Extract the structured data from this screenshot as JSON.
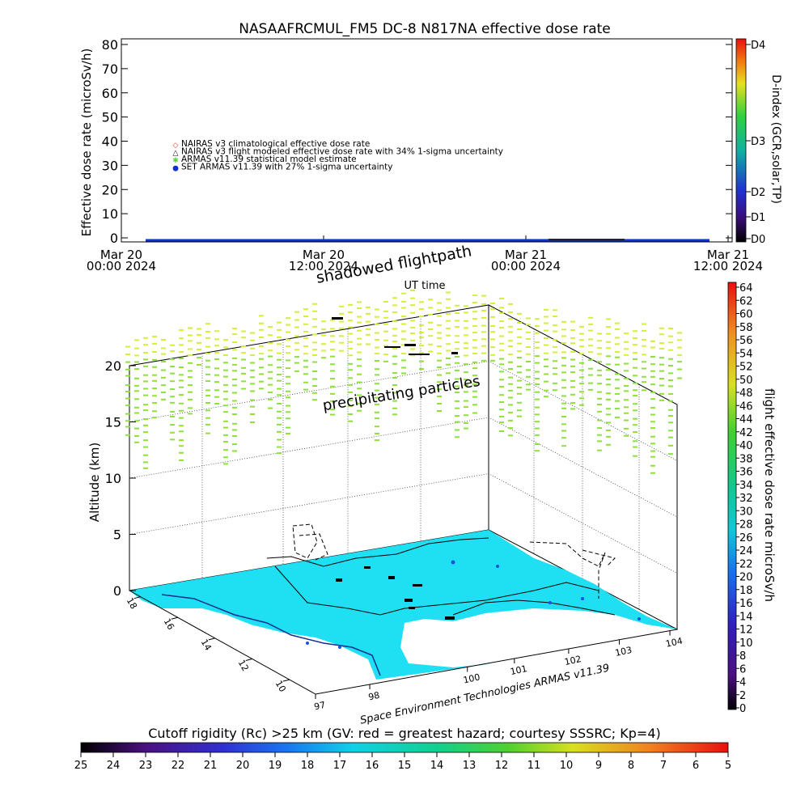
{
  "top_chart": {
    "title": "NASAAFRCMUL_FM5 DC-8   N817NA effective dose rate",
    "ylabel": "Effective dose rate (microSv/h)",
    "xlabel": "UT time",
    "yticks": [
      "0",
      "10",
      "20",
      "30",
      "40",
      "50",
      "60",
      "70",
      "80"
    ],
    "xticks": [
      {
        "l1": "Mar 20",
        "l2": "00:00 2024"
      },
      {
        "l1": "Mar 20",
        "l2": "12:00 2024"
      },
      {
        "l1": "Mar 21",
        "l2": "00:00 2024"
      },
      {
        "l1": "Mar 21",
        "l2": "12:00 2024"
      }
    ],
    "legend": [
      {
        "symbol": "◇",
        "color": "#e8311f",
        "text": "NAIRAS v3 climatological effective dose rate"
      },
      {
        "symbol": "△",
        "color": "#000000",
        "text": "NAIRAS v3 flight modeled effective dose rate with 34% 1-sigma uncertainty"
      },
      {
        "symbol": "✱",
        "color": "#5bd43c",
        "text": "ARMAS v11.39 statistical model estimate"
      },
      {
        "symbol": "●",
        "color": "#1030d0",
        "text": "SET ARMAS v11.39 with 27% 1-sigma uncertainty"
      }
    ],
    "dindex_label": "D-index (GCR,solar,TP)",
    "dindex_ticks": [
      "D4",
      "D3",
      "D2",
      "D1",
      "D0"
    ]
  },
  "chart_data": {
    "type": "line",
    "title": "NASAAFRCMUL_FM5 DC-8   N817NA effective dose rate",
    "xlabel": "UT time",
    "ylabel": "Effective dose rate (microSv/h)",
    "ylim": [
      0,
      80
    ],
    "x_range": [
      "Mar 20 00:00 2024",
      "Mar 21 12:00 2024"
    ],
    "series": [
      {
        "name": "SET ARMAS v11.39 with 27% 1-sigma uncertainty",
        "x": [
          "Mar 20 01:00",
          "Mar 21 11:00"
        ],
        "values": [
          0,
          0
        ]
      }
    ]
  },
  "labels": {
    "shadowed_flightpath": "shadowed flightpath",
    "precipitating_particles": "precipitating particles",
    "altitude": "Altitude (km)",
    "altitude_ticks": [
      "0",
      "5",
      "10",
      "15",
      "20"
    ],
    "lat_ticks": [
      "18",
      "16",
      "14",
      "12",
      "10"
    ],
    "lon_ticks": [
      "97",
      "98",
      "100",
      "101",
      "102",
      "103",
      "104"
    ],
    "credit": "Space Environment Technologies ARMAS v11.39"
  },
  "right_colorbar": {
    "label": "flight effective dose rate microSv/h",
    "ticks": [
      "64",
      "62",
      "60",
      "58",
      "56",
      "54",
      "52",
      "50",
      "48",
      "46",
      "44",
      "42",
      "40",
      "38",
      "36",
      "34",
      "32",
      "30",
      "28",
      "26",
      "24",
      "22",
      "20",
      "18",
      "16",
      "14",
      "12",
      "10",
      "8",
      "6",
      "4",
      "2",
      "0"
    ]
  },
  "bottom_colorbar": {
    "title": "Cutoff rigidity (Rc) >25 km (GV: red = greatest hazard; courtesy SSSRC; Kp=4)",
    "ticks": [
      "25",
      "24",
      "23",
      "22",
      "21",
      "20",
      "19",
      "18",
      "17",
      "16",
      "15",
      "14",
      "13",
      "12",
      "11",
      "10",
      "9",
      "8",
      "7",
      "6",
      "5"
    ]
  },
  "colors": {
    "cyan_region": "#1ee0f2",
    "blue_series": "#1030d0",
    "particle_green": "#8fe03a",
    "particle_yellow": "#d4ee3a"
  }
}
